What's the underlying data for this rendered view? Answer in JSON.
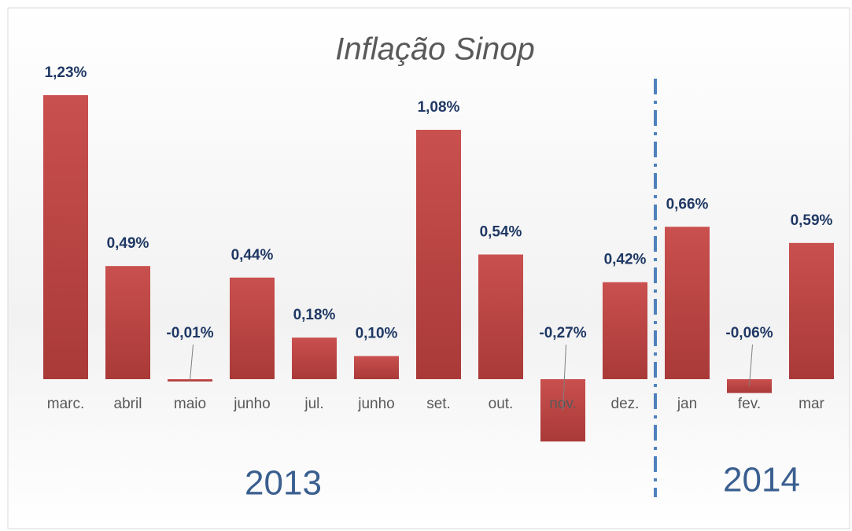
{
  "chart_data": {
    "type": "bar",
    "title": "Inflação Sinop",
    "categories": [
      "marc.",
      "abril",
      "maio",
      "junho",
      "jul.",
      "junho",
      "set.",
      "out.",
      "nov.",
      "dez.",
      "jan",
      "fev.",
      "mar"
    ],
    "values": [
      1.23,
      0.49,
      -0.01,
      0.44,
      0.18,
      0.1,
      1.08,
      0.54,
      -0.27,
      0.42,
      0.66,
      -0.06,
      0.59
    ],
    "value_labels": [
      "1,23%",
      "0,49%",
      "-0,01%",
      "0,44%",
      "0,18%",
      "0,10%",
      "1,08%",
      "0,54%",
      "-0,27%",
      "0,42%",
      "0,66%",
      "-0,06%",
      "0,59%"
    ],
    "color": "#c0504d",
    "annotations": [
      "2013",
      "2014"
    ]
  }
}
